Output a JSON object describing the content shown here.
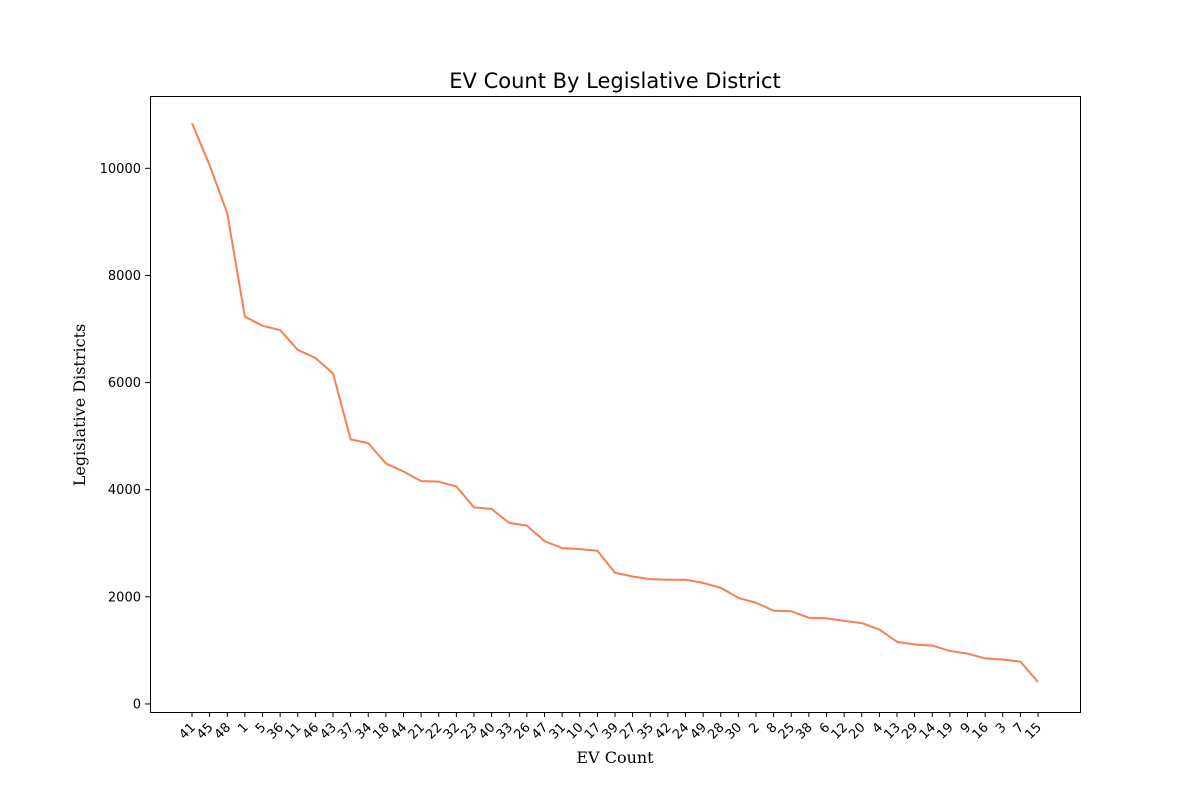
{
  "chart_data": {
    "type": "line",
    "title": "EV Count By Legislative District",
    "xlabel": "EV Count",
    "ylabel": "Legislative Districts",
    "ylim": [
      -150,
      11350
    ],
    "yticks": [
      0,
      2000,
      4000,
      6000,
      8000,
      10000
    ],
    "grid": false,
    "color": "#f77f52",
    "categories": [
      "41",
      "45",
      "48",
      "1",
      "5",
      "36",
      "11",
      "46",
      "43",
      "37",
      "34",
      "18",
      "44",
      "21",
      "22",
      "32",
      "23",
      "40",
      "33",
      "26",
      "47",
      "31",
      "10",
      "17",
      "39",
      "27",
      "35",
      "42",
      "24",
      "49",
      "28",
      "30",
      "2",
      "8",
      "25",
      "38",
      "6",
      "12",
      "20",
      "4",
      "13",
      "29",
      "14",
      "19",
      "9",
      "16",
      "3",
      "7",
      "15"
    ],
    "values": [
      10840,
      10060,
      9160,
      7230,
      7060,
      6980,
      6610,
      6460,
      6170,
      4940,
      4870,
      4490,
      4340,
      4160,
      4150,
      4060,
      3670,
      3640,
      3380,
      3330,
      3040,
      2910,
      2890,
      2860,
      2450,
      2380,
      2330,
      2320,
      2320,
      2260,
      2170,
      1980,
      1890,
      1740,
      1730,
      1610,
      1600,
      1550,
      1510,
      1390,
      1160,
      1110,
      1090,
      990,
      940,
      850,
      830,
      790,
      410
    ]
  }
}
